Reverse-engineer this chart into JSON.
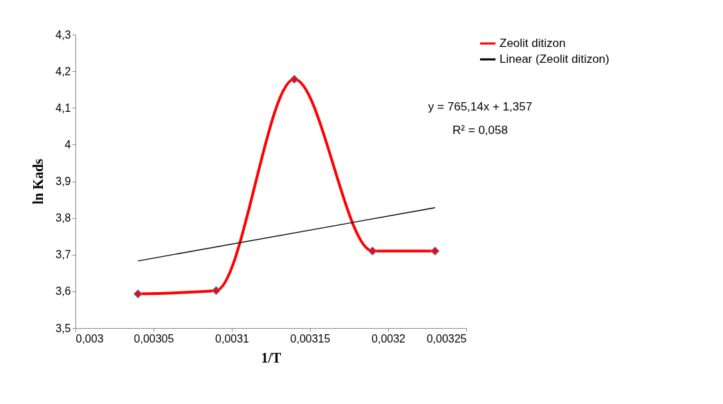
{
  "chart_data": {
    "type": "line",
    "xlabel": "1/T",
    "ylabel": "ln Kads",
    "xlim": [
      0.003,
      0.00325
    ],
    "xticks": [
      {
        "value": 0.003,
        "label": "0,003"
      },
      {
        "value": 0.00305,
        "label": "0,00305"
      },
      {
        "value": 0.0031,
        "label": "0,0031"
      },
      {
        "value": 0.00315,
        "label": "0,00315"
      },
      {
        "value": 0.0032,
        "label": "0,0032"
      },
      {
        "value": 0.00325,
        "label": "0,00325"
      }
    ],
    "ylim": [
      3.5,
      4.3
    ],
    "yticks": [
      {
        "value": 3.5,
        "label": "3,5"
      },
      {
        "value": 3.6,
        "label": "3,6"
      },
      {
        "value": 3.7,
        "label": "3,7"
      },
      {
        "value": 3.8,
        "label": "3,8"
      },
      {
        "value": 3.9,
        "label": "3,9"
      },
      {
        "value": 4,
        "label": "4"
      },
      {
        "value": 4.1,
        "label": "4,1"
      },
      {
        "value": 4.2,
        "label": "4,2"
      },
      {
        "value": 4.3,
        "label": "4,3"
      }
    ],
    "x": [
      0.00304,
      0.00309,
      0.00314,
      0.00319,
      0.00323
    ],
    "series": [
      {
        "name": "Zeolit ditizon",
        "color": "#ff0000",
        "values": [
          3.593,
          3.602,
          4.178,
          3.71,
          3.71
        ]
      },
      {
        "name": "Linear (Zeolit ditizon)",
        "type": "line",
        "color": "#000000",
        "marker": "none",
        "x": [
          0.00304,
          0.00323
        ],
        "values": [
          3.683,
          3.828
        ]
      }
    ],
    "marker": "diamond",
    "grid": false,
    "legend": "right",
    "annotations": [
      "y = 765,14x + 1,357",
      "R² = 0,058"
    ]
  }
}
